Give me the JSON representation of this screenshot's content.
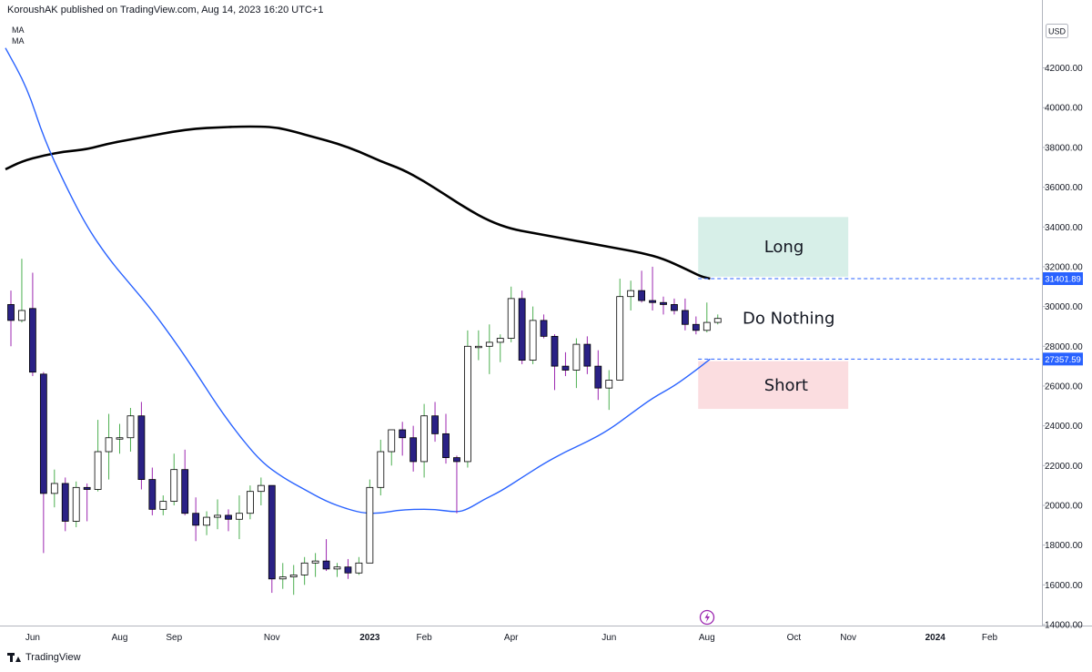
{
  "header": {
    "published_by": "KoroushAK published on TradingView.com, Aug 14, 2023 16:20 UTC+1"
  },
  "indicators": [
    "MA",
    "MA"
  ],
  "footer": {
    "brand": "TradingView"
  },
  "colors": {
    "bull_body": "#ffffff",
    "bear_body": "#2a2185",
    "wick_up": "#4caf50",
    "wick_down": "#9c27b0",
    "ma_fast": "#2962ff",
    "ma_slow": "#000000",
    "long_zone": "#d7efe8",
    "short_zone": "#fbdde0",
    "level_line": "#2962ff",
    "lightning": "#9c27b0"
  },
  "chart_data": {
    "type": "candlestick",
    "currency": "USD",
    "ylim": [
      14000,
      43400
    ],
    "y_ticks": [
      14000,
      16000,
      18000,
      20000,
      22000,
      24000,
      26000,
      28000,
      30000,
      32000,
      34000,
      36000,
      38000,
      40000,
      42000
    ],
    "x_ticks": [
      {
        "label": "Jun",
        "idx": 2
      },
      {
        "label": "Aug",
        "idx": 10
      },
      {
        "label": "Sep",
        "idx": 15
      },
      {
        "label": "Nov",
        "idx": 24
      },
      {
        "label": "2023",
        "idx": 33
      },
      {
        "label": "Feb",
        "idx": 38
      },
      {
        "label": "Apr",
        "idx": 46
      },
      {
        "label": "Jun",
        "idx": 55
      },
      {
        "label": "Aug",
        "idx": 64
      },
      {
        "label": "Oct",
        "idx": 72
      },
      {
        "label": "Nov",
        "idx": 77
      },
      {
        "label": "2024",
        "idx": 85
      },
      {
        "label": "Feb",
        "idx": 90
      }
    ],
    "candles": [
      {
        "o": 30100,
        "h": 30800,
        "l": 28000,
        "c": 29300
      },
      {
        "o": 29300,
        "h": 32400,
        "l": 29200,
        "c": 29800
      },
      {
        "o": 29900,
        "h": 31700,
        "l": 26500,
        "c": 26700
      },
      {
        "o": 26600,
        "h": 26700,
        "l": 17600,
        "c": 20600
      },
      {
        "o": 20600,
        "h": 21800,
        "l": 19900,
        "c": 21100
      },
      {
        "o": 21100,
        "h": 21400,
        "l": 18700,
        "c": 19200
      },
      {
        "o": 19200,
        "h": 21200,
        "l": 18900,
        "c": 20900
      },
      {
        "o": 20900,
        "h": 21100,
        "l": 19200,
        "c": 20800
      },
      {
        "o": 20800,
        "h": 24300,
        "l": 20700,
        "c": 22700
      },
      {
        "o": 22700,
        "h": 24600,
        "l": 21300,
        "c": 23400
      },
      {
        "o": 23400,
        "h": 24100,
        "l": 22600,
        "c": 23400
      },
      {
        "o": 23400,
        "h": 24900,
        "l": 22700,
        "c": 24500
      },
      {
        "o": 24500,
        "h": 25200,
        "l": 20800,
        "c": 21300
      },
      {
        "o": 21300,
        "h": 21900,
        "l": 19500,
        "c": 19800
      },
      {
        "o": 19800,
        "h": 20500,
        "l": 19500,
        "c": 20200
      },
      {
        "o": 20200,
        "h": 22600,
        "l": 20000,
        "c": 21800
      },
      {
        "o": 21800,
        "h": 22800,
        "l": 19500,
        "c": 19600
      },
      {
        "o": 19600,
        "h": 20400,
        "l": 18200,
        "c": 19000
      },
      {
        "o": 19000,
        "h": 19700,
        "l": 18500,
        "c": 19400
      },
      {
        "o": 19400,
        "h": 20300,
        "l": 18800,
        "c": 19500
      },
      {
        "o": 19500,
        "h": 19800,
        "l": 18700,
        "c": 19300
      },
      {
        "o": 19300,
        "h": 20500,
        "l": 18300,
        "c": 19600
      },
      {
        "o": 19600,
        "h": 21000,
        "l": 19300,
        "c": 20700
      },
      {
        "o": 20700,
        "h": 21400,
        "l": 20000,
        "c": 21000
      },
      {
        "o": 21000,
        "h": 21000,
        "l": 15600,
        "c": 16300
      },
      {
        "o": 16300,
        "h": 17100,
        "l": 15800,
        "c": 16400
      },
      {
        "o": 16400,
        "h": 17000,
        "l": 15500,
        "c": 16500
      },
      {
        "o": 16500,
        "h": 17400,
        "l": 16000,
        "c": 17100
      },
      {
        "o": 17100,
        "h": 17600,
        "l": 16400,
        "c": 17200
      },
      {
        "o": 17200,
        "h": 18300,
        "l": 16700,
        "c": 16800
      },
      {
        "o": 16800,
        "h": 17100,
        "l": 16400,
        "c": 16900
      },
      {
        "o": 16900,
        "h": 17300,
        "l": 16300,
        "c": 16600
      },
      {
        "o": 16600,
        "h": 17400,
        "l": 16500,
        "c": 17100
      },
      {
        "o": 17100,
        "h": 21300,
        "l": 17100,
        "c": 20900
      },
      {
        "o": 20900,
        "h": 23300,
        "l": 20500,
        "c": 22700
      },
      {
        "o": 22700,
        "h": 23800,
        "l": 22000,
        "c": 23800
      },
      {
        "o": 23800,
        "h": 24200,
        "l": 22500,
        "c": 23400
      },
      {
        "o": 23400,
        "h": 24000,
        "l": 21700,
        "c": 22200
      },
      {
        "o": 22200,
        "h": 25100,
        "l": 21400,
        "c": 24500
      },
      {
        "o": 24500,
        "h": 25200,
        "l": 23200,
        "c": 23600
      },
      {
        "o": 23600,
        "h": 24600,
        "l": 22100,
        "c": 22400
      },
      {
        "o": 22400,
        "h": 22500,
        "l": 19600,
        "c": 22200
      },
      {
        "o": 22200,
        "h": 28800,
        "l": 21900,
        "c": 28000
      },
      {
        "o": 28000,
        "h": 28800,
        "l": 27300,
        "c": 28000
      },
      {
        "o": 28000,
        "h": 29100,
        "l": 26600,
        "c": 28200
      },
      {
        "o": 28200,
        "h": 28600,
        "l": 27200,
        "c": 28400
      },
      {
        "o": 28400,
        "h": 31000,
        "l": 28200,
        "c": 30400
      },
      {
        "o": 30400,
        "h": 30800,
        "l": 27100,
        "c": 27300
      },
      {
        "o": 27300,
        "h": 30000,
        "l": 27100,
        "c": 29300
      },
      {
        "o": 29300,
        "h": 29600,
        "l": 28400,
        "c": 28500
      },
      {
        "o": 28500,
        "h": 28600,
        "l": 25800,
        "c": 27000
      },
      {
        "o": 27000,
        "h": 27700,
        "l": 26500,
        "c": 26800
      },
      {
        "o": 26800,
        "h": 28400,
        "l": 25900,
        "c": 28100
      },
      {
        "o": 28100,
        "h": 28500,
        "l": 26600,
        "c": 27000
      },
      {
        "o": 27000,
        "h": 27800,
        "l": 25300,
        "c": 25900
      },
      {
        "o": 25900,
        "h": 26800,
        "l": 24800,
        "c": 26300
      },
      {
        "o": 26300,
        "h": 31400,
        "l": 26300,
        "c": 30500
      },
      {
        "o": 30500,
        "h": 31300,
        "l": 29800,
        "c": 30800
      },
      {
        "o": 30800,
        "h": 31800,
        "l": 30200,
        "c": 30300
      },
      {
        "o": 30300,
        "h": 32000,
        "l": 29800,
        "c": 30200
      },
      {
        "o": 30200,
        "h": 30500,
        "l": 29600,
        "c": 30100
      },
      {
        "o": 30100,
        "h": 30400,
        "l": 29600,
        "c": 29800
      },
      {
        "o": 29800,
        "h": 30400,
        "l": 28800,
        "c": 29100
      },
      {
        "o": 29100,
        "h": 29500,
        "l": 28600,
        "c": 28800
      },
      {
        "o": 28800,
        "h": 30200,
        "l": 28700,
        "c": 29200
      },
      {
        "o": 29200,
        "h": 29600,
        "l": 29100,
        "c": 29400
      }
    ],
    "ma_fast": [
      {
        "i": -0.5,
        "v": 43000
      },
      {
        "i": 1.5,
        "v": 41000
      },
      {
        "i": 3,
        "v": 38500
      },
      {
        "i": 5,
        "v": 36100
      },
      {
        "i": 7,
        "v": 34000
      },
      {
        "i": 9,
        "v": 32400
      },
      {
        "i": 11,
        "v": 31100
      },
      {
        "i": 13,
        "v": 29800
      },
      {
        "i": 15,
        "v": 28300
      },
      {
        "i": 17,
        "v": 26700
      },
      {
        "i": 19,
        "v": 25000
      },
      {
        "i": 21,
        "v": 23500
      },
      {
        "i": 23,
        "v": 22200
      },
      {
        "i": 25,
        "v": 21400
      },
      {
        "i": 27,
        "v": 20800
      },
      {
        "i": 29,
        "v": 20200
      },
      {
        "i": 31,
        "v": 19800
      },
      {
        "i": 32.5,
        "v": 19600
      },
      {
        "i": 34,
        "v": 19600
      },
      {
        "i": 35.5,
        "v": 19750
      },
      {
        "i": 37,
        "v": 19800
      },
      {
        "i": 39,
        "v": 19800
      },
      {
        "i": 41,
        "v": 19650
      },
      {
        "i": 42,
        "v": 19800
      },
      {
        "i": 43.5,
        "v": 20300
      },
      {
        "i": 45,
        "v": 20700
      },
      {
        "i": 47,
        "v": 21400
      },
      {
        "i": 49,
        "v": 22100
      },
      {
        "i": 51,
        "v": 22700
      },
      {
        "i": 53,
        "v": 23200
      },
      {
        "i": 55,
        "v": 23800
      },
      {
        "i": 57,
        "v": 24600
      },
      {
        "i": 59,
        "v": 25400
      },
      {
        "i": 61,
        "v": 26000
      },
      {
        "i": 63,
        "v": 26800
      },
      {
        "i": 64.3,
        "v": 27357.59
      }
    ],
    "ma_slow": [
      {
        "i": -0.5,
        "v": 36900
      },
      {
        "i": 1,
        "v": 37300
      },
      {
        "i": 3,
        "v": 37600
      },
      {
        "i": 5,
        "v": 37800
      },
      {
        "i": 7,
        "v": 37900
      },
      {
        "i": 9,
        "v": 38200
      },
      {
        "i": 11,
        "v": 38400
      },
      {
        "i": 13,
        "v": 38600
      },
      {
        "i": 15,
        "v": 38800
      },
      {
        "i": 17,
        "v": 38950
      },
      {
        "i": 19,
        "v": 39000
      },
      {
        "i": 21,
        "v": 39050
      },
      {
        "i": 23,
        "v": 39050
      },
      {
        "i": 24.5,
        "v": 39000
      },
      {
        "i": 26,
        "v": 38800
      },
      {
        "i": 28,
        "v": 38500
      },
      {
        "i": 30,
        "v": 38200
      },
      {
        "i": 32,
        "v": 37800
      },
      {
        "i": 34,
        "v": 37300
      },
      {
        "i": 36,
        "v": 36900
      },
      {
        "i": 38,
        "v": 36300
      },
      {
        "i": 40,
        "v": 35600
      },
      {
        "i": 42,
        "v": 34900
      },
      {
        "i": 44,
        "v": 34300
      },
      {
        "i": 46,
        "v": 33900
      },
      {
        "i": 48,
        "v": 33700
      },
      {
        "i": 50,
        "v": 33500
      },
      {
        "i": 52,
        "v": 33300
      },
      {
        "i": 54,
        "v": 33100
      },
      {
        "i": 56,
        "v": 32900
      },
      {
        "i": 58,
        "v": 32700
      },
      {
        "i": 60,
        "v": 32400
      },
      {
        "i": 62,
        "v": 31900
      },
      {
        "i": 63.5,
        "v": 31500
      },
      {
        "i": 64.3,
        "v": 31401.89
      }
    ],
    "levels": [
      {
        "value": 31401.89,
        "label": "31401.89"
      },
      {
        "value": 27357.59,
        "label": "27357.59"
      }
    ],
    "zones": [
      {
        "name": "long",
        "label": "Long",
        "from": 31500,
        "to": 34500,
        "i0": 63.2,
        "i1": 77.0
      },
      {
        "name": "short",
        "label": "Short",
        "from": 24850,
        "to": 27250,
        "i0": 63.2,
        "i1": 77.0
      }
    ],
    "annotation": {
      "label": "Do Nothing",
      "value": 29400
    }
  }
}
